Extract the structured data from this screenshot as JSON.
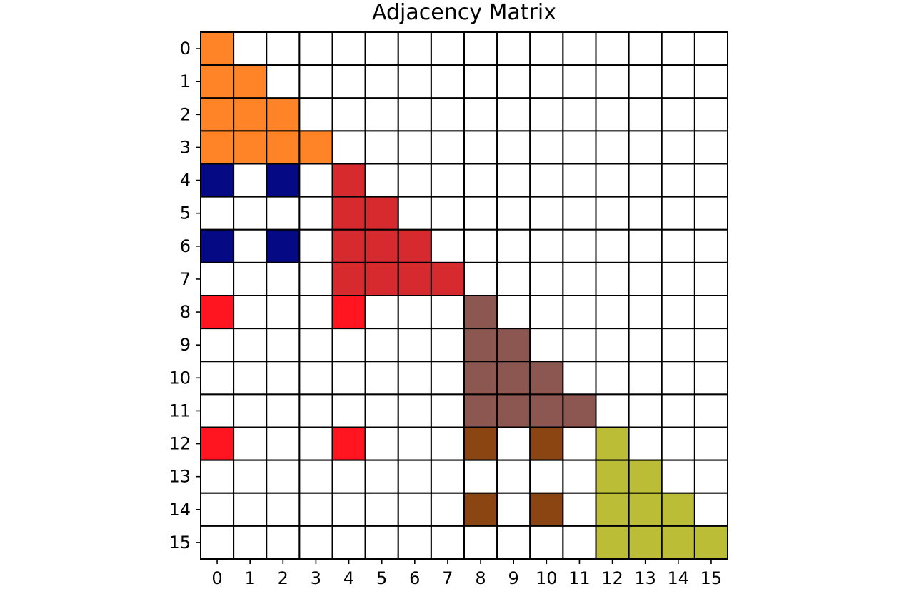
{
  "chart_data": {
    "type": "heatmap",
    "title": "Adjacency Matrix",
    "xlabel": "",
    "ylabel": "",
    "x_ticks": [
      "0",
      "1",
      "2",
      "3",
      "4",
      "5",
      "6",
      "7",
      "8",
      "9",
      "10",
      "11",
      "12",
      "13",
      "14",
      "15"
    ],
    "y_ticks": [
      "0",
      "1",
      "2",
      "3",
      "4",
      "5",
      "6",
      "7",
      "8",
      "9",
      "10",
      "11",
      "12",
      "13",
      "14",
      "15"
    ],
    "size": 16,
    "colors": {
      "empty": "#ffffff",
      "orange": "#ff8427",
      "navy": "#050a84",
      "crimson": "#d62a2f",
      "red": "#ff1520",
      "brown": "#8c5750",
      "saddle": "#8b4513",
      "olive": "#bcbd37",
      "grid": "#000000"
    },
    "filled_cells": [
      {
        "row": 0,
        "col": 0,
        "color": "orange"
      },
      {
        "row": 1,
        "col": 0,
        "color": "orange"
      },
      {
        "row": 1,
        "col": 1,
        "color": "orange"
      },
      {
        "row": 2,
        "col": 0,
        "color": "orange"
      },
      {
        "row": 2,
        "col": 1,
        "color": "orange"
      },
      {
        "row": 2,
        "col": 2,
        "color": "orange"
      },
      {
        "row": 3,
        "col": 0,
        "color": "orange"
      },
      {
        "row": 3,
        "col": 1,
        "color": "orange"
      },
      {
        "row": 3,
        "col": 2,
        "color": "orange"
      },
      {
        "row": 3,
        "col": 3,
        "color": "orange"
      },
      {
        "row": 4,
        "col": 0,
        "color": "navy"
      },
      {
        "row": 4,
        "col": 2,
        "color": "navy"
      },
      {
        "row": 4,
        "col": 4,
        "color": "crimson"
      },
      {
        "row": 5,
        "col": 4,
        "color": "crimson"
      },
      {
        "row": 5,
        "col": 5,
        "color": "crimson"
      },
      {
        "row": 6,
        "col": 0,
        "color": "navy"
      },
      {
        "row": 6,
        "col": 2,
        "color": "navy"
      },
      {
        "row": 6,
        "col": 4,
        "color": "crimson"
      },
      {
        "row": 6,
        "col": 5,
        "color": "crimson"
      },
      {
        "row": 6,
        "col": 6,
        "color": "crimson"
      },
      {
        "row": 7,
        "col": 4,
        "color": "crimson"
      },
      {
        "row": 7,
        "col": 5,
        "color": "crimson"
      },
      {
        "row": 7,
        "col": 6,
        "color": "crimson"
      },
      {
        "row": 7,
        "col": 7,
        "color": "crimson"
      },
      {
        "row": 8,
        "col": 0,
        "color": "red"
      },
      {
        "row": 8,
        "col": 4,
        "color": "red"
      },
      {
        "row": 8,
        "col": 8,
        "color": "brown"
      },
      {
        "row": 9,
        "col": 8,
        "color": "brown"
      },
      {
        "row": 9,
        "col": 9,
        "color": "brown"
      },
      {
        "row": 10,
        "col": 8,
        "color": "brown"
      },
      {
        "row": 10,
        "col": 9,
        "color": "brown"
      },
      {
        "row": 10,
        "col": 10,
        "color": "brown"
      },
      {
        "row": 11,
        "col": 8,
        "color": "brown"
      },
      {
        "row": 11,
        "col": 9,
        "color": "brown"
      },
      {
        "row": 11,
        "col": 10,
        "color": "brown"
      },
      {
        "row": 11,
        "col": 11,
        "color": "brown"
      },
      {
        "row": 12,
        "col": 0,
        "color": "red"
      },
      {
        "row": 12,
        "col": 4,
        "color": "red"
      },
      {
        "row": 12,
        "col": 8,
        "color": "saddle"
      },
      {
        "row": 12,
        "col": 10,
        "color": "saddle"
      },
      {
        "row": 12,
        "col": 12,
        "color": "olive"
      },
      {
        "row": 13,
        "col": 12,
        "color": "olive"
      },
      {
        "row": 13,
        "col": 13,
        "color": "olive"
      },
      {
        "row": 14,
        "col": 8,
        "color": "saddle"
      },
      {
        "row": 14,
        "col": 10,
        "color": "saddle"
      },
      {
        "row": 14,
        "col": 12,
        "color": "olive"
      },
      {
        "row": 14,
        "col": 13,
        "color": "olive"
      },
      {
        "row": 14,
        "col": 14,
        "color": "olive"
      },
      {
        "row": 15,
        "col": 12,
        "color": "olive"
      },
      {
        "row": 15,
        "col": 13,
        "color": "olive"
      },
      {
        "row": 15,
        "col": 14,
        "color": "olive"
      },
      {
        "row": 15,
        "col": 15,
        "color": "olive"
      }
    ]
  }
}
